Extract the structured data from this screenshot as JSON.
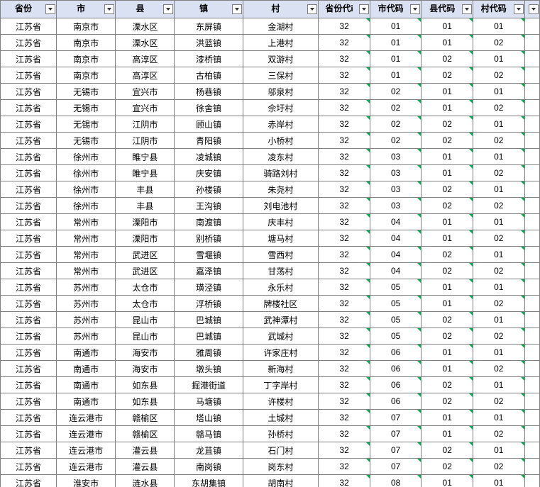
{
  "table": {
    "background_color": "#ffffff",
    "header_bg": "#d9e1f2",
    "border_color": "#808080",
    "corner_mark_color": "#00b050",
    "font_size": 12,
    "columns": [
      {
        "key": "province",
        "label": "省份",
        "width": 74
      },
      {
        "key": "city",
        "label": "市",
        "width": 78
      },
      {
        "key": "county",
        "label": "县",
        "width": 78
      },
      {
        "key": "town",
        "label": "镇",
        "width": 90
      },
      {
        "key": "village",
        "label": "村",
        "width": 100
      },
      {
        "key": "prov_code",
        "label": "省份代i",
        "width": 68
      },
      {
        "key": "city_code",
        "label": "市代码",
        "width": 68
      },
      {
        "key": "county_code",
        "label": "县代码",
        "width": 68
      },
      {
        "key": "village_code",
        "label": "村代码",
        "width": 68
      }
    ],
    "rows": [
      [
        "江苏省",
        "南京市",
        "溧水区",
        "东屏镇",
        "金湖村",
        "32",
        "01",
        "01",
        "01"
      ],
      [
        "江苏省",
        "南京市",
        "溧水区",
        "洪蓝镇",
        "上港村",
        "32",
        "01",
        "01",
        "02"
      ],
      [
        "江苏省",
        "南京市",
        "高淳区",
        "漆桥镇",
        "双游村",
        "32",
        "01",
        "02",
        "01"
      ],
      [
        "江苏省",
        "南京市",
        "高淳区",
        "古柏镇",
        "三保村",
        "32",
        "01",
        "02",
        "02"
      ],
      [
        "江苏省",
        "无锡市",
        "宜兴市",
        "杨巷镇",
        "邬泉村",
        "32",
        "02",
        "01",
        "01"
      ],
      [
        "江苏省",
        "无锡市",
        "宜兴市",
        "徐舍镇",
        "佘圩村",
        "32",
        "02",
        "01",
        "02"
      ],
      [
        "江苏省",
        "无锡市",
        "江阴市",
        "顾山镇",
        "赤岸村",
        "32",
        "02",
        "02",
        "01"
      ],
      [
        "江苏省",
        "无锡市",
        "江阴市",
        "青阳镇",
        "小桥村",
        "32",
        "02",
        "02",
        "02"
      ],
      [
        "江苏省",
        "徐州市",
        "睢宁县",
        "凌城镇",
        "凌东村",
        "32",
        "03",
        "01",
        "01"
      ],
      [
        "江苏省",
        "徐州市",
        "睢宁县",
        "庆安镇",
        "骑路刘村",
        "32",
        "03",
        "01",
        "02"
      ],
      [
        "江苏省",
        "徐州市",
        "丰县",
        "孙楼镇",
        "朱尧村",
        "32",
        "03",
        "02",
        "01"
      ],
      [
        "江苏省",
        "徐州市",
        "丰县",
        "王沟镇",
        "刘电池村",
        "32",
        "03",
        "02",
        "02"
      ],
      [
        "江苏省",
        "常州市",
        "溧阳市",
        "南渡镇",
        "庆丰村",
        "32",
        "04",
        "01",
        "01"
      ],
      [
        "江苏省",
        "常州市",
        "溧阳市",
        "别桥镇",
        "塘马村",
        "32",
        "04",
        "01",
        "02"
      ],
      [
        "江苏省",
        "常州市",
        "武进区",
        "雪堰镇",
        "雪西村",
        "32",
        "04",
        "02",
        "01"
      ],
      [
        "江苏省",
        "常州市",
        "武进区",
        "嘉泽镇",
        "甘荡村",
        "32",
        "04",
        "02",
        "02"
      ],
      [
        "江苏省",
        "苏州市",
        "太仓市",
        "璜泾镇",
        "永乐村",
        "32",
        "05",
        "01",
        "01"
      ],
      [
        "江苏省",
        "苏州市",
        "太仓市",
        "浮桥镇",
        "牌楼社区",
        "32",
        "05",
        "01",
        "02"
      ],
      [
        "江苏省",
        "苏州市",
        "昆山市",
        "巴城镇",
        "武神潭村",
        "32",
        "05",
        "02",
        "01"
      ],
      [
        "江苏省",
        "苏州市",
        "昆山市",
        "巴城镇",
        "武城村",
        "32",
        "05",
        "02",
        "02"
      ],
      [
        "江苏省",
        "南通市",
        "海安市",
        "雅周镇",
        "许家庄村",
        "32",
        "06",
        "01",
        "01"
      ],
      [
        "江苏省",
        "南通市",
        "海安市",
        "墩头镇",
        "新海村",
        "32",
        "06",
        "01",
        "02"
      ],
      [
        "江苏省",
        "南通市",
        "如东县",
        "掘港街道",
        "丁字岸村",
        "32",
        "06",
        "02",
        "01"
      ],
      [
        "江苏省",
        "南通市",
        "如东县",
        "马塘镇",
        "许楼村",
        "32",
        "06",
        "02",
        "02"
      ],
      [
        "江苏省",
        "连云港市",
        "赣榆区",
        "塔山镇",
        "土城村",
        "32",
        "07",
        "01",
        "01"
      ],
      [
        "江苏省",
        "连云港市",
        "赣榆区",
        "赣马镇",
        "孙桥村",
        "32",
        "07",
        "01",
        "02"
      ],
      [
        "江苏省",
        "连云港市",
        "灌云县",
        "龙苴镇",
        "石门村",
        "32",
        "07",
        "02",
        "01"
      ],
      [
        "江苏省",
        "连云港市",
        "灌云县",
        "南岗镇",
        "岗东村",
        "32",
        "07",
        "02",
        "02"
      ],
      [
        "江苏省",
        "淮安市",
        "涟水县",
        "东胡集镇",
        "胡南村",
        "32",
        "08",
        "01",
        "01"
      ]
    ]
  }
}
